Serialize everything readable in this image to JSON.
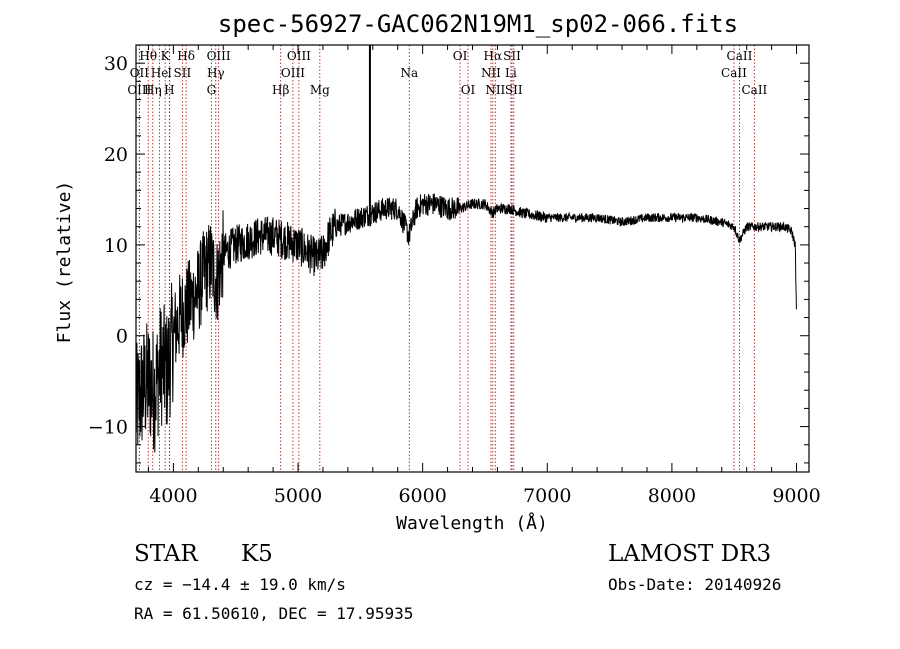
{
  "chart_data": {
    "type": "line",
    "title": "spec-56927-GAC062N19M1_sp02-066.fits",
    "xlabel": "Wavelength (Å)",
    "ylabel": "Flux (relative)",
    "xlim": [
      3700,
      9100
    ],
    "ylim": [
      -15,
      32
    ],
    "xticks": [
      4000,
      5000,
      6000,
      7000,
      8000,
      9000
    ],
    "yticks": [
      -10,
      0,
      10,
      20,
      30
    ],
    "xtick_labels": [
      "4000",
      "5000",
      "6000",
      "7000",
      "8000",
      "9000"
    ],
    "ytick_labels": [
      "−10",
      "0",
      "10",
      "20",
      "30"
    ],
    "spectrum_trend": [
      {
        "x": 3700,
        "y": -8
      },
      {
        "x": 3750,
        "y": -6
      },
      {
        "x": 3800,
        "y": -5
      },
      {
        "x": 3850,
        "y": -6
      },
      {
        "x": 3900,
        "y": -3
      },
      {
        "x": 3950,
        "y": -4
      },
      {
        "x": 4000,
        "y": 0
      },
      {
        "x": 4050,
        "y": 2
      },
      {
        "x": 4100,
        "y": 3
      },
      {
        "x": 4150,
        "y": 4
      },
      {
        "x": 4200,
        "y": 5
      },
      {
        "x": 4250,
        "y": 7
      },
      {
        "x": 4300,
        "y": 8
      },
      {
        "x": 4350,
        "y": 6
      },
      {
        "x": 4400,
        "y": 9
      },
      {
        "x": 4500,
        "y": 10
      },
      {
        "x": 4600,
        "y": 10.5
      },
      {
        "x": 4700,
        "y": 11
      },
      {
        "x": 4800,
        "y": 11
      },
      {
        "x": 4900,
        "y": 10.5
      },
      {
        "x": 5000,
        "y": 10
      },
      {
        "x": 5100,
        "y": 9
      },
      {
        "x": 5150,
        "y": 8.5
      },
      {
        "x": 5200,
        "y": 9
      },
      {
        "x": 5250,
        "y": 11
      },
      {
        "x": 5300,
        "y": 12
      },
      {
        "x": 5400,
        "y": 12.5
      },
      {
        "x": 5500,
        "y": 13
      },
      {
        "x": 5600,
        "y": 13.5
      },
      {
        "x": 5700,
        "y": 14
      },
      {
        "x": 5800,
        "y": 14
      },
      {
        "x": 5890,
        "y": 11
      },
      {
        "x": 5950,
        "y": 14
      },
      {
        "x": 6000,
        "y": 14.5
      },
      {
        "x": 6100,
        "y": 14.5
      },
      {
        "x": 6200,
        "y": 14
      },
      {
        "x": 6300,
        "y": 14
      },
      {
        "x": 6400,
        "y": 14.5
      },
      {
        "x": 6500,
        "y": 14.5
      },
      {
        "x": 6563,
        "y": 13.5
      },
      {
        "x": 6600,
        "y": 14
      },
      {
        "x": 6700,
        "y": 14
      },
      {
        "x": 6800,
        "y": 13.5
      },
      {
        "x": 7000,
        "y": 13
      },
      {
        "x": 7200,
        "y": 13
      },
      {
        "x": 7400,
        "y": 13
      },
      {
        "x": 7600,
        "y": 12.5
      },
      {
        "x": 7800,
        "y": 13
      },
      {
        "x": 8000,
        "y": 13
      },
      {
        "x": 8200,
        "y": 13
      },
      {
        "x": 8400,
        "y": 12.5
      },
      {
        "x": 8500,
        "y": 12
      },
      {
        "x": 8542,
        "y": 10.5
      },
      {
        "x": 8600,
        "y": 12
      },
      {
        "x": 8700,
        "y": 12
      },
      {
        "x": 8800,
        "y": 12
      },
      {
        "x": 8900,
        "y": 12
      },
      {
        "x": 8960,
        "y": 11.5
      },
      {
        "x": 8990,
        "y": 10
      },
      {
        "x": 9000,
        "y": 2
      }
    ],
    "sharp_features": [
      {
        "x": 5577,
        "y_bottom": 13,
        "y_top": 32
      }
    ],
    "emission_lines": [
      {
        "name": "Hθ",
        "x": 3798,
        "row": 0
      },
      {
        "name": "K",
        "x": 3934,
        "row": 0
      },
      {
        "name": "Hδ",
        "x": 4102,
        "row": 0
      },
      {
        "name": "OIII",
        "x": 4363,
        "row": 0
      },
      {
        "name": "OIII",
        "x": 5007,
        "row": 0
      },
      {
        "name": "OI",
        "x": 6300,
        "row": 0
      },
      {
        "name": "Hα",
        "x": 6563,
        "row": 0
      },
      {
        "name": "SII",
        "x": 6717,
        "row": 0
      },
      {
        "name": "CaII",
        "x": 8542,
        "row": 0
      },
      {
        "name": "OII",
        "x": 3727,
        "row": 1
      },
      {
        "name": "He",
        "x": 3889,
        "row": 1
      },
      {
        "name": "I",
        "x": 3970,
        "row": 1
      },
      {
        "name": "SII",
        "x": 4072,
        "row": 1
      },
      {
        "name": "Hγ",
        "x": 4340,
        "row": 1
      },
      {
        "name": "OIII",
        "x": 4959,
        "row": 1
      },
      {
        "name": "Na",
        "x": 5893,
        "row": 1
      },
      {
        "name": "NII",
        "x": 6548,
        "row": 1
      },
      {
        "name": "Li",
        "x": 6708,
        "row": 1
      },
      {
        "name": "CaII",
        "x": 8498,
        "row": 1
      },
      {
        "name": "OIII",
        "x": 3727,
        "row": 2
      },
      {
        "name": "Hη",
        "x": 3835,
        "row": 2
      },
      {
        "name": "H",
        "x": 3968,
        "row": 2
      },
      {
        "name": "G",
        "x": 4305,
        "row": 2
      },
      {
        "name": "Hβ",
        "x": 4861,
        "row": 2
      },
      {
        "name": "Mg",
        "x": 5175,
        "row": 2
      },
      {
        "name": "OI",
        "x": 6364,
        "row": 2
      },
      {
        "name": "NII",
        "x": 6583,
        "row": 2
      },
      {
        "name": "SII",
        "x": 6731,
        "row": 2
      },
      {
        "name": "CaII",
        "x": 8662,
        "row": 2
      }
    ],
    "annotations": {
      "class": "STAR",
      "subclass": "K5",
      "survey": "LAMOST DR3",
      "cz": "cz = −14.4 ± 19.0 km/s",
      "obs_date": "Obs-Date: 20140926",
      "coords": "RA =  61.50610, DEC =  17.95935"
    }
  }
}
